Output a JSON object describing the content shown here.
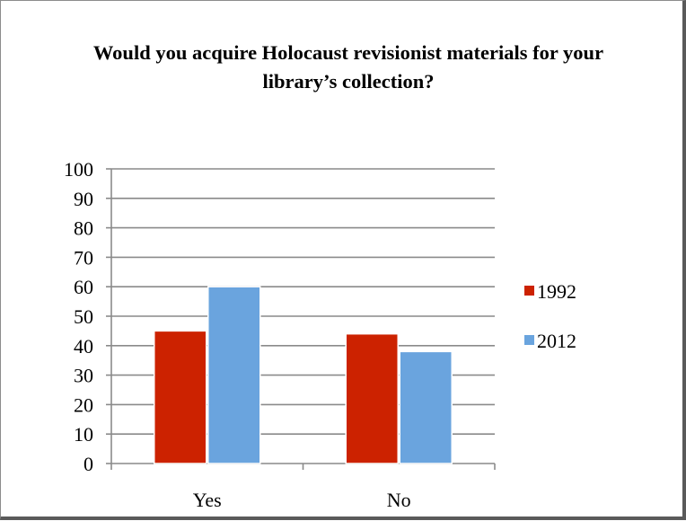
{
  "chart_data": {
    "type": "bar",
    "title": "Would you acquire Holocaust revisionist materials for your library’s collection?",
    "categories": [
      "Yes",
      "No"
    ],
    "series": [
      {
        "name": "1992",
        "values": [
          45,
          44
        ],
        "color": "#cc2200"
      },
      {
        "name": "2012",
        "values": [
          60,
          38
        ],
        "color": "#6aa4de"
      }
    ],
    "ylim": [
      0,
      100
    ],
    "yticks": [
      0,
      10,
      20,
      30,
      40,
      50,
      60,
      70,
      80,
      90,
      100
    ],
    "grid": true,
    "legend_position": "right",
    "xlabel": "",
    "ylabel": ""
  }
}
